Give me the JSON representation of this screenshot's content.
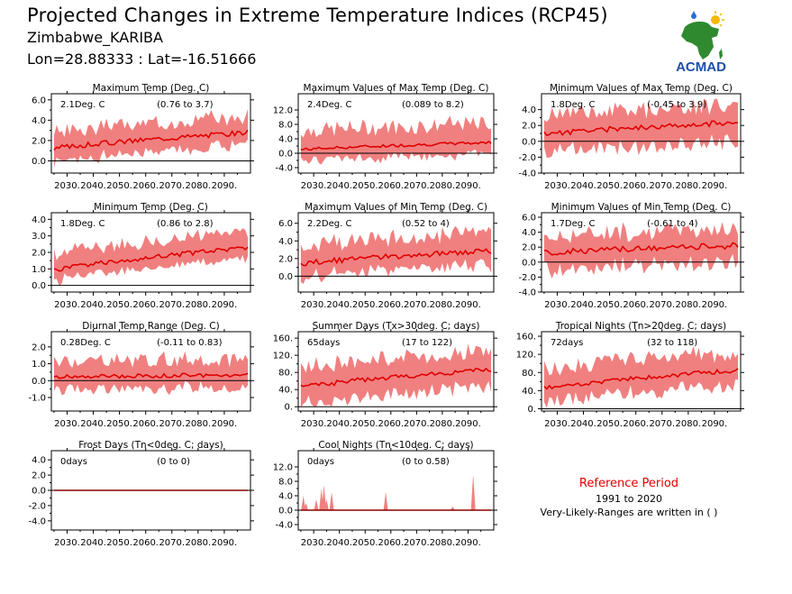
{
  "header": {
    "title": "Projected Changes in Extreme Temperature Indices (RCP45)",
    "location": "Zimbabwe_KARIBA",
    "coords": "Lon=28.88333 : Lat=-16.51666",
    "logo_text": "ACMAD"
  },
  "legend": {
    "reference": "Reference Period",
    "years": "1991 to 2020",
    "note": "Very-Likely-Ranges are written in ( )"
  },
  "colors": {
    "band": "#f08080",
    "line": "#e00000",
    "zero": "#000000"
  },
  "chart_data": [
    {
      "type": "area",
      "title": "Maximum Temp (Deg. C)",
      "value_label": "2.1Deg. C",
      "range_label": "(0.76 to 3.7)",
      "ylim": [
        -1.2,
        6.6
      ],
      "yticks": [
        0,
        2,
        4,
        6
      ],
      "ytick_labels": [
        "0.0",
        "2.0",
        "4.0",
        "6.0"
      ],
      "xticks": [
        "2030.",
        "2040.",
        "2050.",
        "2060.",
        "2070.",
        "2080.",
        "2090."
      ],
      "series": {
        "start": 1.2,
        "end": 2.8,
        "noise": 0.25,
        "band_low": 1.2,
        "band_high": 1.5,
        "seed": 3
      }
    },
    {
      "type": "area",
      "title": "Maximum Values of Max Temp (Deg. C)",
      "value_label": "2.4Deg. C",
      "range_label": "(0.089 to 8.2)",
      "ylim": [
        -5.5,
        16.5
      ],
      "yticks": [
        -4,
        0,
        4,
        8,
        12
      ],
      "ytick_labels": [
        "-4.0",
        "0.0",
        "4.0",
        "8.0",
        "12.0"
      ],
      "xticks": [
        "2030.",
        "2040.",
        "2050.",
        "2060.",
        "2070.",
        "2080.",
        "2090."
      ],
      "series": {
        "start": 1.0,
        "end": 3.0,
        "noise": 0.4,
        "band_low": 3.0,
        "band_high": 5.0,
        "seed": 7
      }
    },
    {
      "type": "area",
      "title": "Minimum Values of Max Temp (Deg. C)",
      "value_label": "1.8Deg. C",
      "range_label": "(-0.45 to 3.9)",
      "ylim": [
        -4.0,
        6.0
      ],
      "yticks": [
        -4,
        -2,
        0,
        2,
        4
      ],
      "ytick_labels": [
        "-4.0",
        "-2.0",
        "0.0",
        "2.0",
        "4.0"
      ],
      "xticks": [
        "2030.",
        "2040.",
        "2050.",
        "2060.",
        "2070.",
        "2080.",
        "2090."
      ],
      "series": {
        "start": 0.9,
        "end": 2.4,
        "noise": 0.35,
        "band_low": 2.2,
        "band_high": 2.2,
        "seed": 11
      }
    },
    {
      "type": "area",
      "title": "Minimum Temp (Deg. C)",
      "value_label": "1.8Deg. C",
      "range_label": "(0.86 to 2.8)",
      "ylim": [
        -0.4,
        4.4
      ],
      "yticks": [
        0,
        1,
        2,
        3,
        4
      ],
      "ytick_labels": [
        "0.0",
        "1.0",
        "2.0",
        "3.0",
        "4.0"
      ],
      "xticks": [
        "2030.",
        "2040.",
        "2050.",
        "2060.",
        "2070.",
        "2080.",
        "2090."
      ],
      "series": {
        "start": 0.9,
        "end": 2.3,
        "noise": 0.15,
        "band_low": 0.6,
        "band_high": 0.9,
        "seed": 5
      }
    },
    {
      "type": "area",
      "title": "Maximum Values of Min Temp (Deg. C)",
      "value_label": "2.2Deg. C",
      "range_label": "(0.52 to 4)",
      "ylim": [
        -1.8,
        7.2
      ],
      "yticks": [
        0,
        2,
        4,
        6
      ],
      "ytick_labels": [
        "0.0",
        "2.0",
        "4.0",
        "6.0"
      ],
      "xticks": [
        "2030.",
        "2040.",
        "2050.",
        "2060.",
        "2070.",
        "2080.",
        "2090."
      ],
      "series": {
        "start": 1.4,
        "end": 2.9,
        "noise": 0.3,
        "band_low": 1.5,
        "band_high": 2.0,
        "seed": 13
      }
    },
    {
      "type": "area",
      "title": "Minimum Values of Min Temp (Deg. C)",
      "value_label": "1.7Deg. C",
      "range_label": "(-0.61 to 4)",
      "ylim": [
        -4.0,
        6.6
      ],
      "yticks": [
        -4,
        -2,
        0,
        2,
        4,
        6
      ],
      "ytick_labels": [
        "-4.0",
        "-2.0",
        "0.0",
        "2.0",
        "4.0",
        "6.0"
      ],
      "xticks": [
        "2030.",
        "2040.",
        "2050.",
        "2060.",
        "2070.",
        "2080.",
        "2090."
      ],
      "series": {
        "start": 1.2,
        "end": 2.2,
        "noise": 0.4,
        "band_low": 2.2,
        "band_high": 2.2,
        "seed": 17
      }
    },
    {
      "type": "area",
      "title": "Diurnal Temp Range (Deg. C)",
      "value_label": "0.28Deg. C",
      "range_label": "(-0.11 to 0.83)",
      "ylim": [
        -1.8,
        2.9
      ],
      "yticks": [
        -1,
        0,
        1,
        2
      ],
      "ytick_labels": [
        "-1.0",
        "0.0",
        "1.0",
        "2.0"
      ],
      "xticks": [
        "2030.",
        "2040.",
        "2050.",
        "2060.",
        "2070.",
        "2080.",
        "2090."
      ],
      "series": {
        "start": 0.2,
        "end": 0.35,
        "noise": 0.12,
        "band_low": 0.7,
        "band_high": 0.9,
        "seed": 19
      }
    },
    {
      "type": "area",
      "title": "Summer Days (Tx>30deg. C; days)",
      "value_label": "65days",
      "range_label": "(17 to 122)",
      "ylim": [
        -10,
        175
      ],
      "yticks": [
        0,
        40,
        80,
        120,
        160
      ],
      "ytick_labels": [
        "0.",
        "40.",
        "80.",
        "120.",
        "160."
      ],
      "xticks": [
        "2030.",
        "2040.",
        "2050.",
        "2060.",
        "2070.",
        "2080.",
        "2090."
      ],
      "series": {
        "start": 45,
        "end": 88,
        "noise": 6,
        "band_low": 38,
        "band_high": 42,
        "seed": 23
      }
    },
    {
      "type": "area",
      "title": "Tropical Nights (Tn>20deg. C; days)",
      "value_label": "72days",
      "range_label": "(32 to 118)",
      "ylim": [
        -5,
        170
      ],
      "yticks": [
        0,
        40,
        80,
        120,
        160
      ],
      "ytick_labels": [
        "0.",
        "40.",
        "80.",
        "120.",
        "160."
      ],
      "xticks": [
        "2030.",
        "2040.",
        "2050.",
        "2060.",
        "2070.",
        "2080.",
        "2090."
      ],
      "series": {
        "start": 45,
        "end": 85,
        "noise": 5,
        "band_low": 30,
        "band_high": 38,
        "seed": 29
      }
    },
    {
      "type": "area",
      "title": "Frost Days (Tn<0deg. C; days)",
      "value_label": "0days",
      "range_label": "(0 to 0)",
      "ylim": [
        -5.2,
        5.2
      ],
      "yticks": [
        -4,
        -2,
        0,
        2,
        4
      ],
      "ytick_labels": [
        "-4.0",
        "-2.0",
        "0.0",
        "2.0",
        "4.0"
      ],
      "xticks": [
        "2030.",
        "2040.",
        "2050.",
        "2060.",
        "2070.",
        "2080.",
        "2090."
      ],
      "series": {
        "start": 0,
        "end": 0,
        "noise": 0,
        "band_low": 0,
        "band_high": 0,
        "seed": 1
      }
    },
    {
      "type": "area",
      "title": "Cool Nights (Tn<10deg. C; days)",
      "value_label": "0days",
      "range_label": "(0 to 0.58)",
      "ylim": [
        -5.5,
        16.5
      ],
      "yticks": [
        -4,
        0,
        4,
        8,
        12
      ],
      "ytick_labels": [
        "-4.0",
        "0.0",
        "4.0",
        "8.0",
        "12.0"
      ],
      "xticks": [
        "2030.",
        "2040.",
        "2050.",
        "2060.",
        "2070.",
        "2080.",
        "2090."
      ],
      "series": {
        "start": 0,
        "end": 0,
        "noise": 0,
        "band_low": 0,
        "band_high": 0,
        "seed": 2,
        "spikes": [
          [
            2026,
            4
          ],
          [
            2027,
            2
          ],
          [
            2031,
            3
          ],
          [
            2033,
            6
          ],
          [
            2034,
            7
          ],
          [
            2035,
            3
          ],
          [
            2037,
            5
          ],
          [
            2058,
            5
          ],
          [
            2084,
            1
          ],
          [
            2092,
            10
          ]
        ]
      }
    }
  ]
}
